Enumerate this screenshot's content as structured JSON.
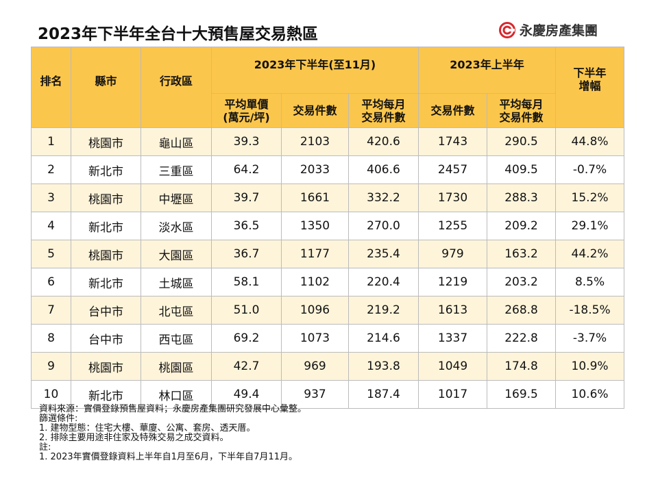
{
  "header": {
    "title": "2023年下半年全台十大預售屋交易熱區",
    "brand": "永慶房產集團"
  },
  "table": {
    "group_headers": {
      "rank": "排名",
      "city": "縣市",
      "district": "行政區",
      "h2": "2023年下半年(至11月)",
      "h1": "2023年上半年",
      "growth": [
        "下半年",
        "增幅"
      ]
    },
    "sub_headers": [
      [
        "平均單價",
        "(萬元/坪)"
      ],
      [
        "交易件數"
      ],
      [
        "平均每月",
        "交易件數"
      ],
      [
        "交易件數"
      ],
      [
        "平均每月",
        "交易件數"
      ]
    ],
    "rows": [
      [
        "1",
        "桃園市",
        "龜山區",
        "39.3",
        "2103",
        "420.6",
        "1743",
        "290.5",
        "44.8%"
      ],
      [
        "2",
        "新北市",
        "三重區",
        "64.2",
        "2033",
        "406.6",
        "2457",
        "409.5",
        "-0.7%"
      ],
      [
        "3",
        "桃園市",
        "中壢區",
        "39.7",
        "1661",
        "332.2",
        "1730",
        "288.3",
        "15.2%"
      ],
      [
        "4",
        "新北市",
        "淡水區",
        "36.5",
        "1350",
        "270.0",
        "1255",
        "209.2",
        "29.1%"
      ],
      [
        "5",
        "桃園市",
        "大園區",
        "36.7",
        "1177",
        "235.4",
        "979",
        "163.2",
        "44.2%"
      ],
      [
        "6",
        "新北市",
        "土城區",
        "58.1",
        "1102",
        "220.4",
        "1219",
        "203.2",
        "8.5%"
      ],
      [
        "7",
        "台中市",
        "北屯區",
        "51.0",
        "1096",
        "219.2",
        "1613",
        "268.8",
        "-18.5%"
      ],
      [
        "8",
        "台中市",
        "西屯區",
        "69.2",
        "1073",
        "214.6",
        "1337",
        "222.8",
        "-3.7%"
      ],
      [
        "9",
        "桃園市",
        "桃園區",
        "42.7",
        "969",
        "193.8",
        "1049",
        "174.8",
        "10.9%"
      ],
      [
        "10",
        "新北市",
        "林口區",
        "49.4",
        "937",
        "187.4",
        "1017",
        "169.5",
        "10.6%"
      ]
    ]
  },
  "footnotes": [
    "資料來源：實價登錄預售屋資料；永慶房產集團研究發展中心彙整。",
    "篩選條件:",
    "1. 建物型態：住宅大樓、華廈、公寓、套房、透天厝。",
    "2. 排除主要用途非住家及特殊交易之成交資料。",
    "註:",
    "1. 2023年實價登錄資料上半年自1月至6月，下半年自7月11月。"
  ]
}
